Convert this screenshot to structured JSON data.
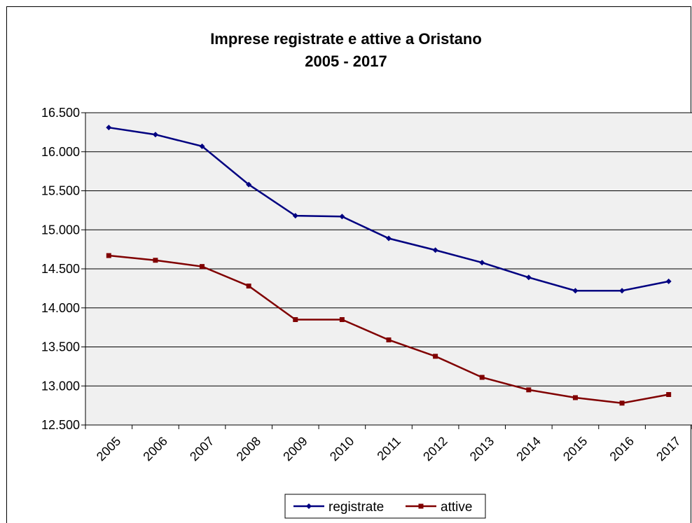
{
  "chart_data": {
    "type": "line",
    "title_line1": "Imprese registrate e attive a Oristano",
    "title_line2": "2005 - 2017",
    "categories": [
      "2005",
      "2006",
      "2007",
      "2008",
      "2009",
      "2010",
      "2011",
      "2012",
      "2013",
      "2014",
      "2015",
      "2016",
      "2017"
    ],
    "y_ticks": [
      "12.500",
      "13.000",
      "13.500",
      "14.000",
      "14.500",
      "15.000",
      "15.500",
      "16.000",
      "16.500"
    ],
    "ylim": [
      12500,
      16500
    ],
    "grid": true,
    "legend_position": "bottom",
    "plot_background": "#f0f0f0",
    "series": [
      {
        "name": "registrate",
        "color": "#000080",
        "marker": "diamond",
        "values": [
          16310,
          16220,
          16070,
          15580,
          15180,
          15170,
          14890,
          14740,
          14580,
          14390,
          14220,
          14220,
          14340
        ]
      },
      {
        "name": "attive",
        "color": "#800000",
        "marker": "square",
        "values": [
          14670,
          14610,
          14530,
          14280,
          13850,
          13850,
          13590,
          13380,
          13110,
          12950,
          12850,
          12780,
          12890
        ]
      }
    ]
  }
}
